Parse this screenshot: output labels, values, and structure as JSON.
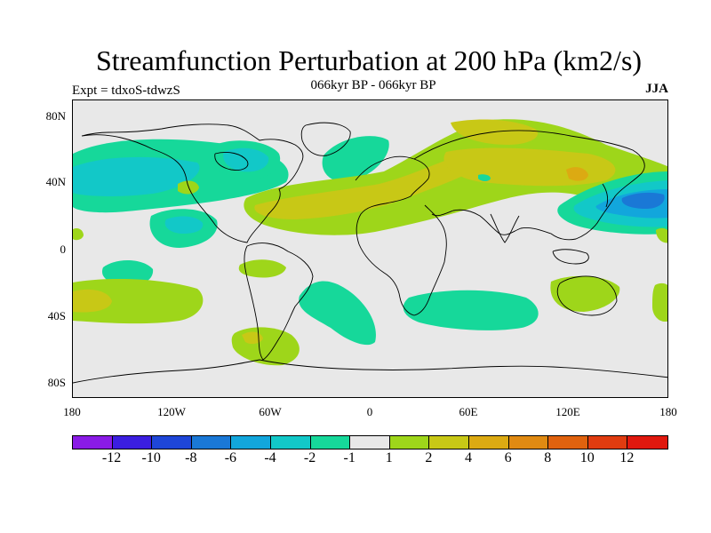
{
  "figure": {
    "title": "Streamfunction Perturbation at 200 hPa (km2/s)",
    "subtitle": "066kyr BP - 066kyr BP",
    "experiment": "Expt = tdxoS-tdwzS",
    "season": "JJA"
  },
  "axes": {
    "y_ticks": [
      "80N",
      "40N",
      "0",
      "40S",
      "80S"
    ],
    "x_ticks": [
      "180",
      "120W",
      "60W",
      "0",
      "60E",
      "120E",
      "180"
    ]
  },
  "legend": {
    "colors": [
      "#8a1be6",
      "#3b1ee0",
      "#1e46d8",
      "#1a78d6",
      "#12a6dc",
      "#12c8c8",
      "#16d89a",
      "#e8e8e8",
      "#9ed61a",
      "#c8c816",
      "#dcaa12",
      "#e08a12",
      "#e0620e",
      "#e03c10",
      "#e0180e"
    ],
    "labels": [
      "-12",
      "-10",
      "-8",
      "-6",
      "-4",
      "-2",
      "-1",
      "1",
      "2",
      "4",
      "6",
      "8",
      "10",
      "12"
    ]
  },
  "colors": {
    "background": "#e8e8e8",
    "coast": "#000000",
    "pos1": "#9ed61a",
    "pos2": "#c8c816",
    "pos3": "#dcaa12",
    "neg1": "#16d89a",
    "neg2": "#12c8c8",
    "neg3": "#12a6dc",
    "neg4": "#1a78d6"
  }
}
